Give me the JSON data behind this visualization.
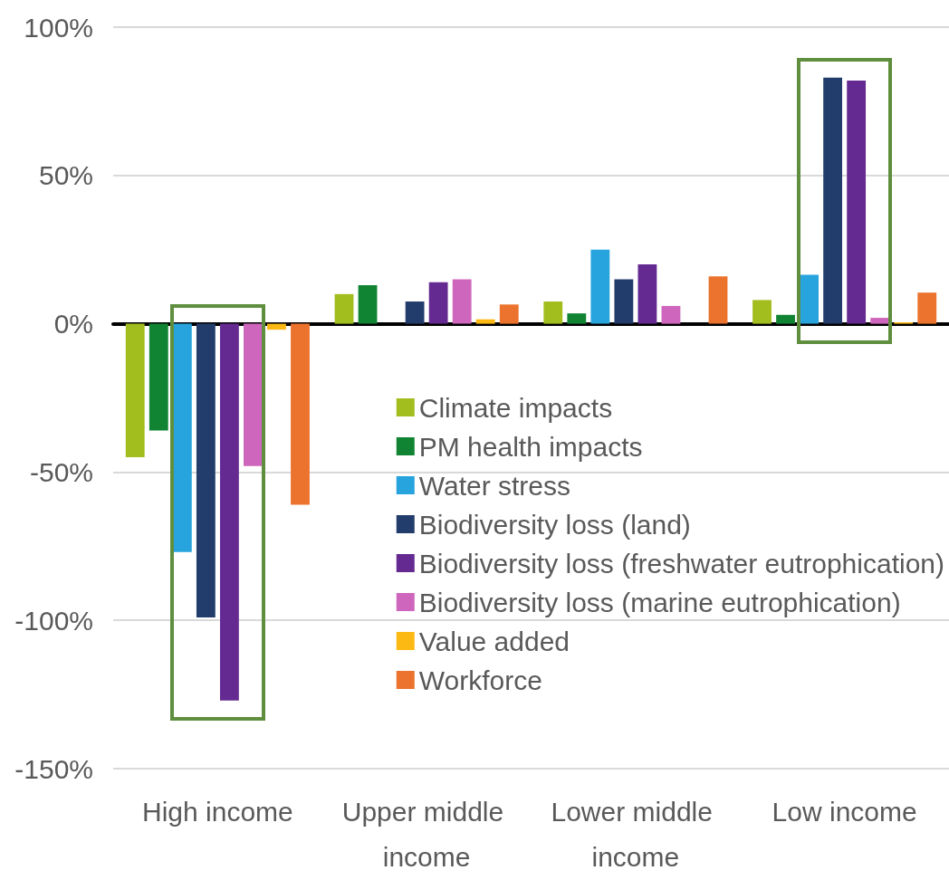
{
  "chart_data": {
    "type": "bar",
    "categories": [
      "High income",
      "Upper middle income",
      "Lower middle income",
      "Low income"
    ],
    "series": [
      {
        "name": "Climate impacts",
        "color": "#a2bd1e",
        "values": [
          -45,
          10,
          7.5,
          8
        ]
      },
      {
        "name": "PM health impacts",
        "color": "#118433",
        "values": [
          -36,
          13,
          3.5,
          3
        ]
      },
      {
        "name": "Water stress",
        "color": "#27a3dd",
        "values": [
          -77,
          null,
          25,
          16.5
        ]
      },
      {
        "name": "Biodiversity loss (land)",
        "color": "#223c6c",
        "values": [
          -99,
          7.5,
          15,
          83
        ]
      },
      {
        "name": "Biodiversity loss (freshwater eutrophication)",
        "color": "#652a91",
        "values": [
          -127,
          14,
          20,
          82
        ]
      },
      {
        "name": "Biodiversity loss (marine eutrophication)",
        "color": "#cf66bd",
        "values": [
          -48,
          15,
          6,
          2
        ]
      },
      {
        "name": "Value added",
        "color": "#fdb913",
        "values": [
          -2,
          1.5,
          null,
          0.5
        ]
      },
      {
        "name": "Workforce",
        "color": "#eb732d",
        "values": [
          -61,
          6.5,
          16,
          10.5
        ]
      }
    ],
    "ylim": [
      -150,
      100
    ],
    "yticks": [
      {
        "value": -150,
        "label": "-150%"
      },
      {
        "value": -100,
        "label": "-100%"
      },
      {
        "value": -50,
        "label": "-50%"
      },
      {
        "value": 0,
        "label": "0%"
      },
      {
        "value": 50,
        "label": "50%"
      },
      {
        "value": 100,
        "label": "100%"
      }
    ],
    "grid": "y",
    "legend": "right"
  }
}
